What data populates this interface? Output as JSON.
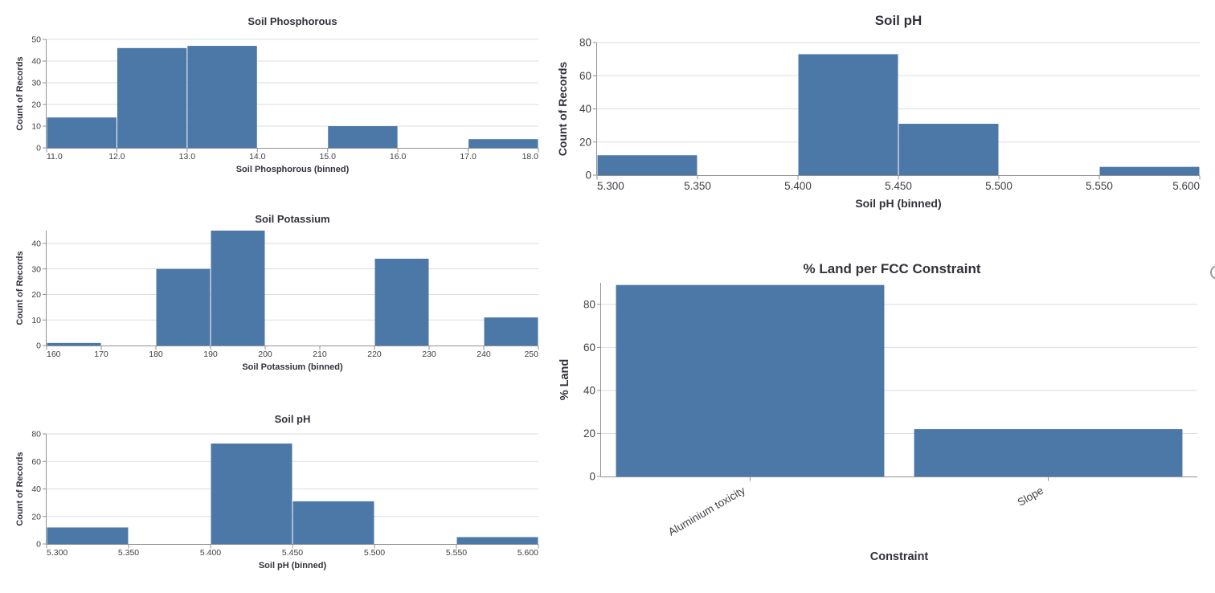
{
  "page": {
    "background": "#ffffff"
  },
  "colors": {
    "bar": "#4c78a8",
    "grid": "#dddddd",
    "axis": "#919191",
    "title_text": "#32323e",
    "label_text": "#3f3f46"
  },
  "ui": {
    "more_options_button": "chart actions menu (partially visible)"
  },
  "chart_data": [
    {
      "name": "soil-phosphorous",
      "type": "bar",
      "subtype": "histogram",
      "title": "Soil Phosphorous",
      "xlabel": "Soil Phosphorous (binned)",
      "ylabel": "Count of Records",
      "x_domain": [
        11,
        18
      ],
      "x_tick_values": [
        11,
        12,
        13,
        14,
        15,
        16,
        17,
        18
      ],
      "x_tick_labels": [
        "11.0",
        "12.0",
        "13.0",
        "14.0",
        "15.0",
        "16.0",
        "17.0",
        "18.0"
      ],
      "y_domain": [
        0,
        50
      ],
      "y_ticks": [
        0,
        10,
        20,
        30,
        40,
        50
      ],
      "grid": "horizontal",
      "legend": "none",
      "bins": [
        {
          "x0": 11,
          "x1": 12,
          "count": 14
        },
        {
          "x0": 12,
          "x1": 13,
          "count": 46
        },
        {
          "x0": 13,
          "x1": 14,
          "count": 47
        },
        {
          "x0": 15,
          "x1": 16,
          "count": 10
        },
        {
          "x0": 17,
          "x1": 18,
          "count": 4
        }
      ]
    },
    {
      "name": "soil-ph-large",
      "type": "bar",
      "subtype": "histogram",
      "title": "Soil pH",
      "xlabel": "Soil pH (binned)",
      "ylabel": "Count of Records",
      "x_domain": [
        5.3,
        5.6
      ],
      "x_tick_values": [
        5.3,
        5.35,
        5.4,
        5.45,
        5.5,
        5.55,
        5.6
      ],
      "x_tick_labels": [
        "5.300",
        "5.350",
        "5.400",
        "5.450",
        "5.500",
        "5.550",
        "5.600"
      ],
      "y_domain": [
        0,
        80
      ],
      "y_ticks": [
        0,
        20,
        40,
        60,
        80
      ],
      "grid": "horizontal",
      "legend": "none",
      "bins": [
        {
          "x0": 5.3,
          "x1": 5.35,
          "count": 12
        },
        {
          "x0": 5.4,
          "x1": 5.45,
          "count": 73
        },
        {
          "x0": 5.45,
          "x1": 5.5,
          "count": 31
        },
        {
          "x0": 5.55,
          "x1": 5.6,
          "count": 5
        }
      ]
    },
    {
      "name": "soil-potassium",
      "type": "bar",
      "subtype": "histogram",
      "title": "Soil Potassium",
      "xlabel": "Soil Potassium (binned)",
      "ylabel": "Count of Records",
      "x_domain": [
        160,
        250
      ],
      "x_tick_values": [
        160,
        170,
        180,
        190,
        200,
        210,
        220,
        230,
        240,
        250
      ],
      "x_tick_labels": [
        "160",
        "170",
        "180",
        "190",
        "200",
        "210",
        "220",
        "230",
        "240",
        "250"
      ],
      "y_domain": [
        0,
        45
      ],
      "y_ticks": [
        0,
        10,
        20,
        30,
        40
      ],
      "grid": "horizontal",
      "legend": "none",
      "bins": [
        {
          "x0": 160,
          "x1": 170,
          "count": 1
        },
        {
          "x0": 180,
          "x1": 190,
          "count": 30
        },
        {
          "x0": 190,
          "x1": 200,
          "count": 45
        },
        {
          "x0": 220,
          "x1": 230,
          "count": 34
        },
        {
          "x0": 240,
          "x1": 250,
          "count": 11
        }
      ]
    },
    {
      "name": "soil-ph-small",
      "type": "bar",
      "subtype": "histogram",
      "title": "Soil pH",
      "xlabel": "Soil pH (binned)",
      "ylabel": "Count of Records",
      "x_domain": [
        5.3,
        5.6
      ],
      "x_tick_values": [
        5.3,
        5.35,
        5.4,
        5.45,
        5.5,
        5.55,
        5.6
      ],
      "x_tick_labels": [
        "5.300",
        "5.350",
        "5.400",
        "5.450",
        "5.500",
        "5.550",
        "5.600"
      ],
      "y_domain": [
        0,
        80
      ],
      "y_ticks": [
        0,
        20,
        40,
        60,
        80
      ],
      "grid": "horizontal",
      "legend": "none",
      "bins": [
        {
          "x0": 5.3,
          "x1": 5.35,
          "count": 12
        },
        {
          "x0": 5.4,
          "x1": 5.45,
          "count": 73
        },
        {
          "x0": 5.45,
          "x1": 5.5,
          "count": 31
        },
        {
          "x0": 5.55,
          "x1": 5.6,
          "count": 5
        }
      ]
    },
    {
      "name": "pct-land-fcc",
      "type": "bar",
      "subtype": "category",
      "title": "% Land per FCC Constraint",
      "xlabel": "Constraint",
      "ylabel": "% Land",
      "categories": [
        "Aluminium toxicity",
        "Slope"
      ],
      "values": [
        89,
        22
      ],
      "y_domain": [
        0,
        90
      ],
      "y_ticks": [
        0,
        20,
        40,
        60,
        80
      ],
      "grid": "horizontal",
      "legend": "none",
      "label_angle": -30
    }
  ]
}
